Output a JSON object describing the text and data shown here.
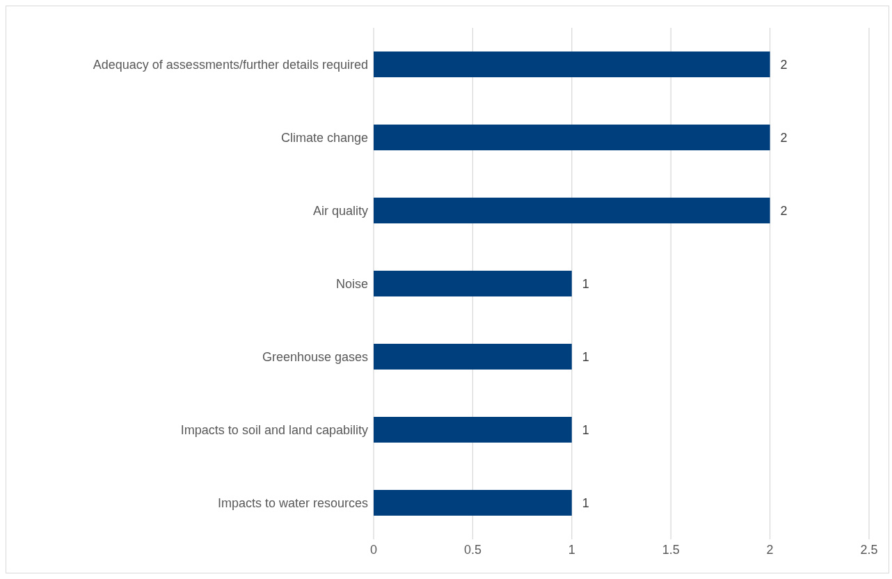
{
  "chart_data": {
    "type": "bar",
    "orientation": "horizontal",
    "categories": [
      "Adequacy of assessments/further details required",
      "Climate change",
      "Air quality",
      "Noise",
      "Greenhouse gases",
      "Impacts to soil and land capability",
      "Impacts to water resources"
    ],
    "values": [
      2,
      2,
      2,
      1,
      1,
      1,
      1
    ],
    "color": "#003f7d",
    "xlim": [
      0,
      2.5
    ],
    "xticks": [
      0,
      0.5,
      1,
      1.5,
      2,
      2.5
    ],
    "grid": "x",
    "data_labels": true,
    "legend": false
  }
}
